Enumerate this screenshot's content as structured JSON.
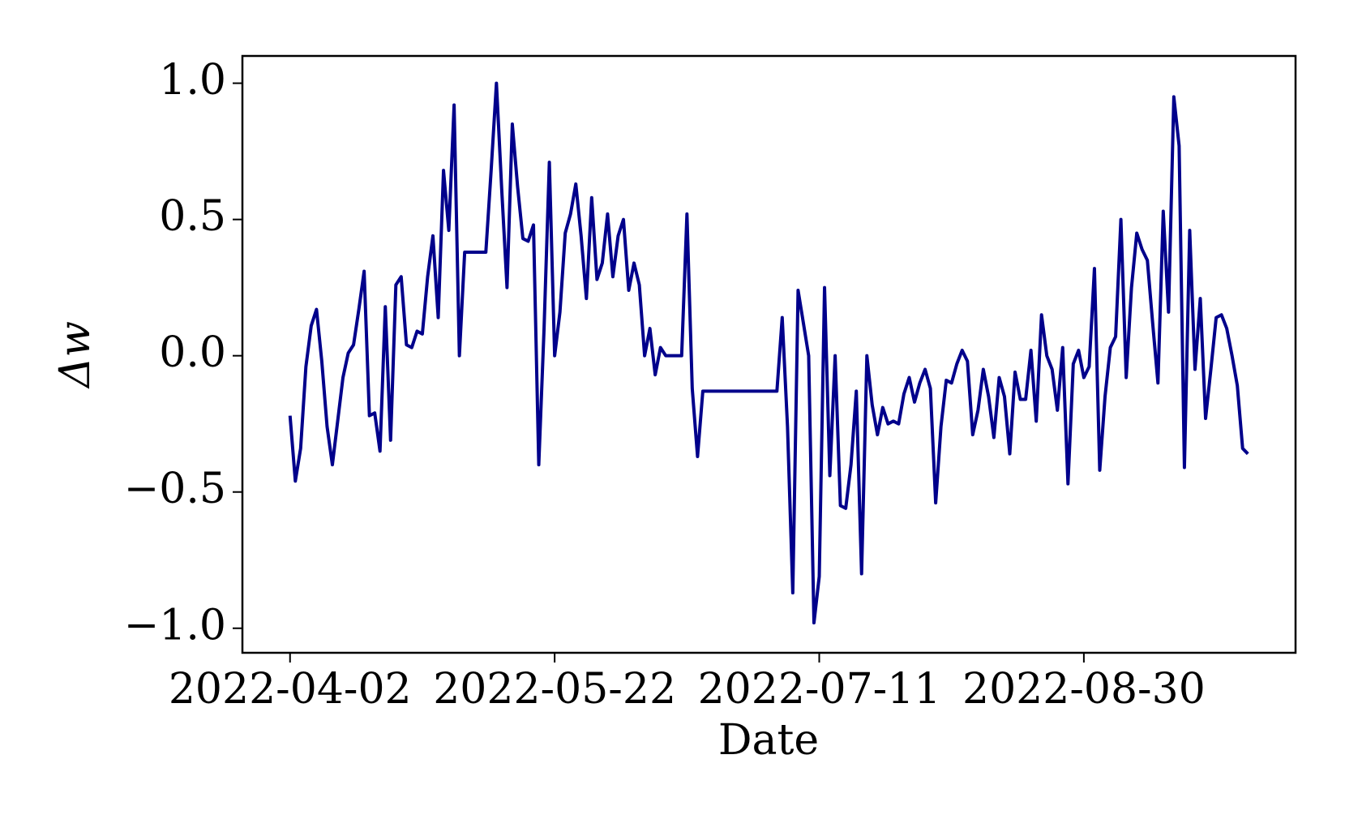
{
  "chart_data": {
    "type": "line",
    "xlabel": "Date",
    "ylabel": "Δw",
    "color": "#00008b",
    "x": [
      "2022-04-02",
      "2022-04-03",
      "2022-04-04",
      "2022-04-05",
      "2022-04-06",
      "2022-04-07",
      "2022-04-08",
      "2022-04-09",
      "2022-04-10",
      "2022-04-11",
      "2022-04-12",
      "2022-04-13",
      "2022-04-14",
      "2022-04-15",
      "2022-04-16",
      "2022-04-17",
      "2022-04-18",
      "2022-04-19",
      "2022-04-20",
      "2022-04-21",
      "2022-04-22",
      "2022-04-23",
      "2022-04-24",
      "2022-04-25",
      "2022-04-26",
      "2022-04-27",
      "2022-04-28",
      "2022-04-29",
      "2022-04-30",
      "2022-05-01",
      "2022-05-02",
      "2022-05-03",
      "2022-05-04",
      "2022-05-05",
      "2022-05-06",
      "2022-05-07",
      "2022-05-08",
      "2022-05-09",
      "2022-05-10",
      "2022-05-11",
      "2022-05-12",
      "2022-05-13",
      "2022-05-14",
      "2022-05-15",
      "2022-05-16",
      "2022-05-17",
      "2022-05-18",
      "2022-05-19",
      "2022-05-20",
      "2022-05-21",
      "2022-05-22",
      "2022-05-23",
      "2022-05-24",
      "2022-05-25",
      "2022-05-26",
      "2022-05-27",
      "2022-05-28",
      "2022-05-29",
      "2022-05-30",
      "2022-05-31",
      "2022-06-01",
      "2022-06-02",
      "2022-06-03",
      "2022-06-04",
      "2022-06-05",
      "2022-06-06",
      "2022-06-07",
      "2022-06-08",
      "2022-06-09",
      "2022-06-10",
      "2022-06-11",
      "2022-06-12",
      "2022-06-13",
      "2022-06-14",
      "2022-06-15",
      "2022-06-16",
      "2022-06-17",
      "2022-06-18",
      "2022-06-19",
      "2022-06-20",
      "2022-06-21",
      "2022-06-22",
      "2022-06-23",
      "2022-06-24",
      "2022-06-25",
      "2022-06-26",
      "2022-06-27",
      "2022-06-28",
      "2022-06-29",
      "2022-06-30",
      "2022-07-01",
      "2022-07-02",
      "2022-07-03",
      "2022-07-04",
      "2022-07-05",
      "2022-07-06",
      "2022-07-07",
      "2022-07-08",
      "2022-07-09",
      "2022-07-10",
      "2022-07-11",
      "2022-07-12",
      "2022-07-13",
      "2022-07-14",
      "2022-07-15",
      "2022-07-16",
      "2022-07-17",
      "2022-07-18",
      "2022-07-19",
      "2022-07-20",
      "2022-07-21",
      "2022-07-22",
      "2022-07-23",
      "2022-07-24",
      "2022-07-25",
      "2022-07-26",
      "2022-07-27",
      "2022-07-28",
      "2022-07-29",
      "2022-07-30",
      "2022-07-31",
      "2022-08-01",
      "2022-08-02",
      "2022-08-03",
      "2022-08-04",
      "2022-08-05",
      "2022-08-06",
      "2022-08-07",
      "2022-08-08",
      "2022-08-09",
      "2022-08-10",
      "2022-08-11",
      "2022-08-12",
      "2022-08-13",
      "2022-08-14",
      "2022-08-15",
      "2022-08-16",
      "2022-08-17",
      "2022-08-18",
      "2022-08-19",
      "2022-08-20",
      "2022-08-21",
      "2022-08-22",
      "2022-08-23",
      "2022-08-24",
      "2022-08-25",
      "2022-08-26",
      "2022-08-27",
      "2022-08-28",
      "2022-08-29",
      "2022-08-30",
      "2022-08-31",
      "2022-09-01",
      "2022-09-02",
      "2022-09-03",
      "2022-09-04",
      "2022-09-05",
      "2022-09-06",
      "2022-09-07",
      "2022-09-08",
      "2022-09-09",
      "2022-09-10",
      "2022-09-11",
      "2022-09-12",
      "2022-09-13",
      "2022-09-14",
      "2022-09-15",
      "2022-09-16",
      "2022-09-17",
      "2022-09-18",
      "2022-09-19",
      "2022-09-20",
      "2022-09-21",
      "2022-09-22",
      "2022-09-23",
      "2022-09-24",
      "2022-09-25",
      "2022-09-26",
      "2022-09-27",
      "2022-09-28",
      "2022-09-29",
      "2022-09-30"
    ],
    "values": [
      -0.22,
      -0.46,
      -0.34,
      -0.04,
      0.11,
      0.17,
      -0.02,
      -0.26,
      -0.4,
      -0.24,
      -0.08,
      0.01,
      0.04,
      0.17,
      0.31,
      -0.22,
      -0.21,
      -0.35,
      0.18,
      -0.31,
      0.26,
      0.29,
      0.04,
      0.03,
      0.09,
      0.08,
      0.29,
      0.44,
      0.14,
      0.68,
      0.46,
      0.92,
      0.0,
      0.38,
      0.38,
      0.38,
      0.38,
      0.38,
      0.68,
      1.0,
      0.61,
      0.25,
      0.85,
      0.62,
      0.43,
      0.42,
      0.48,
      -0.4,
      0.1,
      0.71,
      0.0,
      0.16,
      0.45,
      0.52,
      0.63,
      0.44,
      0.21,
      0.58,
      0.28,
      0.34,
      0.52,
      0.29,
      0.44,
      0.5,
      0.24,
      0.34,
      0.26,
      0.0,
      0.1,
      -0.07,
      0.03,
      0.0,
      0.0,
      0.0,
      0.0,
      0.52,
      -0.12,
      -0.37,
      -0.13,
      -0.13,
      -0.13,
      -0.13,
      -0.13,
      -0.13,
      -0.13,
      -0.13,
      -0.13,
      -0.13,
      -0.13,
      -0.13,
      -0.13,
      -0.13,
      -0.13,
      0.14,
      -0.26,
      -0.87,
      0.24,
      0.12,
      0.0,
      -0.98,
      -0.81,
      0.25,
      -0.44,
      0.0,
      -0.55,
      -0.56,
      -0.4,
      -0.13,
      -0.8,
      0.0,
      -0.18,
      -0.29,
      -0.19,
      -0.25,
      -0.24,
      -0.25,
      -0.14,
      -0.08,
      -0.17,
      -0.1,
      -0.05,
      -0.12,
      -0.54,
      -0.26,
      -0.09,
      -0.1,
      -0.03,
      0.02,
      -0.02,
      -0.29,
      -0.2,
      -0.05,
      -0.15,
      -0.3,
      -0.08,
      -0.15,
      -0.36,
      -0.06,
      -0.16,
      -0.16,
      0.02,
      -0.24,
      0.15,
      0.0,
      -0.05,
      -0.2,
      0.03,
      -0.47,
      -0.03,
      0.02,
      -0.08,
      -0.04,
      0.32,
      -0.42,
      -0.15,
      0.03,
      0.07,
      0.5,
      -0.08,
      0.25,
      0.45,
      0.39,
      0.35,
      0.12,
      -0.1,
      0.53,
      0.16,
      0.95,
      0.77,
      -0.41,
      0.46,
      -0.05,
      0.21,
      -0.23,
      -0.05,
      0.14,
      0.15,
      0.1,
      0.0,
      -0.11,
      -0.34,
      -0.36
    ],
    "xlim": [
      "2022-03-24",
      "2022-10-09"
    ],
    "xticks": [
      "2022-04-02",
      "2022-05-22",
      "2022-07-11",
      "2022-08-30"
    ],
    "ylim": [
      -1.09,
      1.1
    ],
    "yticks": [
      {
        "value": -1,
        "label": "−1.0"
      },
      {
        "value": -0.5,
        "label": "−0.5"
      },
      {
        "value": 0,
        "label": "0.0"
      },
      0.5,
      {
        "value": 1,
        "label": "1.0"
      }
    ]
  }
}
